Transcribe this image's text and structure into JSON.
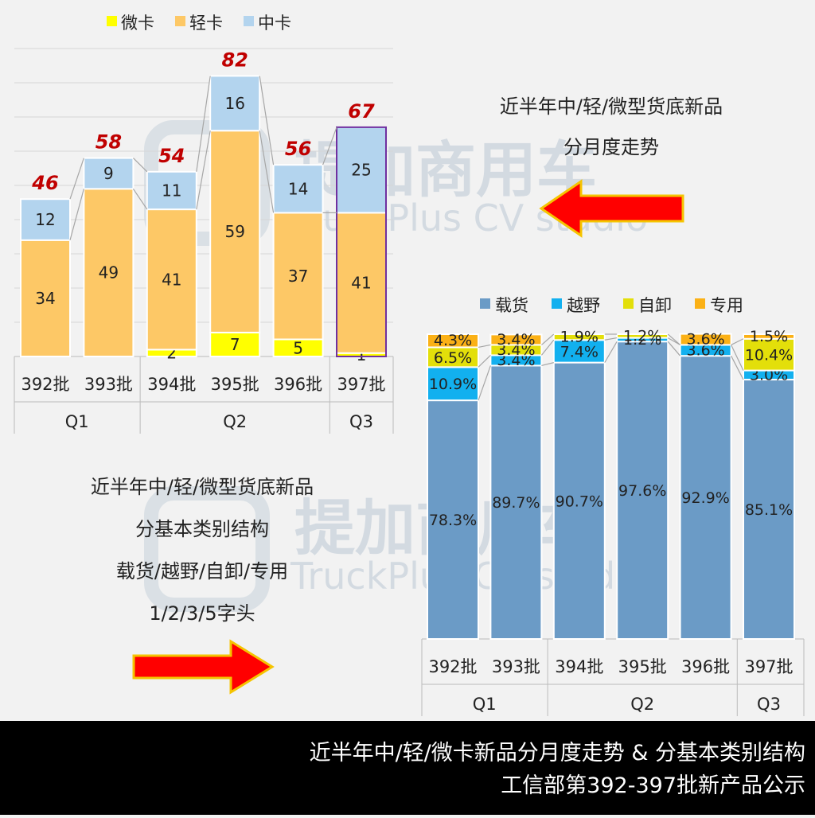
{
  "watermark": {
    "cn": "提加商用车",
    "en": "TruckPlus CV studio"
  },
  "chart_data": [
    {
      "type": "bar",
      "stacked": true,
      "title": "",
      "categories": [
        "392批",
        "393批",
        "394批",
        "395批",
        "396批",
        "397批"
      ],
      "groups": [
        {
          "label": "Q1",
          "span": 2
        },
        {
          "label": "Q2",
          "span": 3
        },
        {
          "label": "Q3",
          "span": 1
        }
      ],
      "series": [
        {
          "name": "微卡",
          "color": "#ffff00",
          "values": [
            0,
            0,
            2,
            7,
            5,
            1
          ]
        },
        {
          "name": "轻卡",
          "color": "#fdc866",
          "values": [
            34,
            49,
            41,
            59,
            37,
            41
          ]
        },
        {
          "name": "中卡",
          "color": "#b3d4ee",
          "values": [
            12,
            9,
            11,
            16,
            14,
            25
          ]
        }
      ],
      "totals": [
        "46",
        "58",
        "54",
        "82",
        "56",
        "67"
      ],
      "highlight_index": 5,
      "ylim": [
        0,
        82
      ],
      "grid": true,
      "legend": "top"
    },
    {
      "type": "bar",
      "stacked": true,
      "percent": true,
      "categories": [
        "392批",
        "393批",
        "394批",
        "395批",
        "396批",
        "397批"
      ],
      "groups": [
        {
          "label": "Q1",
          "span": 2
        },
        {
          "label": "Q2",
          "span": 3
        },
        {
          "label": "Q3",
          "span": 1
        }
      ],
      "series": [
        {
          "name": "载货",
          "color": "#6b9bc6",
          "values": [
            78.3,
            89.7,
            90.7,
            97.6,
            92.9,
            85.1
          ],
          "labels": [
            "78.3%",
            "89.7%",
            "90.7%",
            "97.6%",
            "92.9%",
            "85.1%"
          ]
        },
        {
          "name": "越野",
          "color": "#12b0ef",
          "values": [
            10.9,
            3.4,
            7.4,
            1.2,
            3.6,
            3.0
          ],
          "labels": [
            "10.9%",
            "3.4%",
            "7.4%",
            "1.2%",
            "3.6%",
            "3.0%"
          ]
        },
        {
          "name": "自卸",
          "color": "#e3df0a",
          "values": [
            6.5,
            3.4,
            1.9,
            1.2,
            0,
            10.4
          ],
          "labels": [
            "6.5%",
            "3.4%",
            "1.9%",
            "1.2%",
            "",
            "10.4%"
          ]
        },
        {
          "name": "专用",
          "color": "#fbb116",
          "values": [
            4.3,
            3.4,
            0,
            0,
            3.6,
            1.5
          ],
          "labels": [
            "4.3%",
            "3.4%",
            "",
            "",
            "3.6%",
            "1.5%"
          ]
        }
      ],
      "ylim": [
        0,
        100
      ],
      "legend": "top"
    }
  ],
  "notes": {
    "top": [
      "近半年中/轻/微型货底新品",
      "分月度走势"
    ],
    "left": [
      "近半年中/轻/微型货底新品",
      "分基本类别结构",
      "载货/越野/自卸/专用",
      "1/2/3/5字头"
    ]
  },
  "footer": {
    "line1": "近半年中/轻/微卡新品分月度走势 & 分基本类别结构",
    "line2": "工信部第392-397批新产品公示"
  }
}
